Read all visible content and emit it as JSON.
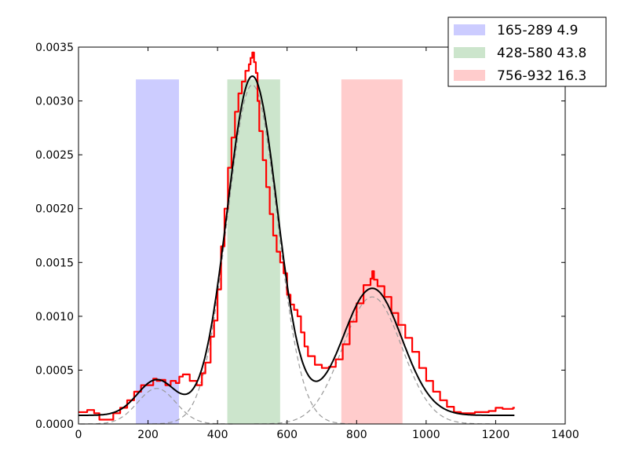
{
  "chart_data": {
    "type": "line",
    "title": "",
    "xlabel": "",
    "ylabel": "",
    "xlim": [
      0,
      1400
    ],
    "ylim": [
      0,
      0.0035
    ],
    "x_ticks": [
      0,
      200,
      400,
      600,
      800,
      1000,
      1200,
      1400
    ],
    "x_tick_labels": [
      "0",
      "200",
      "400",
      "600",
      "800",
      "1000",
      "1200",
      "1400"
    ],
    "y_ticks": [
      0,
      0.0005,
      0.001,
      0.0015,
      0.002,
      0.0025,
      0.003,
      0.0035
    ],
    "y_tick_labels": [
      "0.0000",
      "0.0005",
      "0.0010",
      "0.0015",
      "0.0020",
      "0.0025",
      "0.0030",
      "0.0035"
    ],
    "legend_position": "top-right (outside plot)",
    "bands": [
      {
        "label": "165-289 4.9",
        "x0": 165,
        "x1": 289,
        "y_top": 0.0032,
        "color": "#ccccff"
      },
      {
        "label": "428-580 43.8",
        "x0": 428,
        "x1": 580,
        "y_top": 0.0032,
        "color": "#cce5cc"
      },
      {
        "label": "756-932 16.3",
        "x0": 756,
        "x1": 932,
        "y_top": 0.0032,
        "color": "#ffcccc"
      }
    ],
    "components": [
      {
        "mean": 225,
        "sd": 55,
        "amp": 0.00033
      },
      {
        "mean": 500,
        "sd": 72,
        "amp": 0.00315
      },
      {
        "mean": 845,
        "sd": 85,
        "amp": 0.00118
      }
    ],
    "fit_baseline": 8e-05,
    "fit_range": [
      0,
      1255
    ],
    "series": [
      {
        "color": "#ff0000",
        "x": [
          0,
          25,
          45,
          60,
          80,
          100,
          120,
          140,
          160,
          180,
          200,
          215,
          225,
          235,
          250,
          265,
          280,
          290,
          300,
          320,
          340,
          355,
          365,
          380,
          390,
          400,
          410,
          420,
          430,
          440,
          450,
          460,
          470,
          480,
          490,
          495,
          500,
          505,
          510,
          515,
          520,
          530,
          540,
          550,
          560,
          570,
          580,
          590,
          600,
          610,
          620,
          630,
          640,
          650,
          660,
          680,
          700,
          720,
          740,
          760,
          780,
          800,
          820,
          840,
          845,
          850,
          860,
          880,
          900,
          920,
          940,
          960,
          980,
          1000,
          1020,
          1040,
          1060,
          1080,
          1100,
          1140,
          1180,
          1200,
          1220,
          1250
        ],
        "y": [
          0.00011,
          0.00013,
          0.0001,
          4e-05,
          4e-05,
          0.0001,
          0.00015,
          0.00022,
          0.0003,
          0.00036,
          0.00036,
          0.00042,
          0.0004,
          0.00041,
          0.00036,
          0.0004,
          0.00038,
          0.00044,
          0.00046,
          0.0004,
          0.00036,
          0.00047,
          0.00057,
          0.00081,
          0.00096,
          0.00125,
          0.00165,
          0.002,
          0.00238,
          0.00266,
          0.0029,
          0.00307,
          0.00318,
          0.00328,
          0.00334,
          0.0034,
          0.00345,
          0.00336,
          0.00326,
          0.003,
          0.00272,
          0.00245,
          0.0022,
          0.00195,
          0.00175,
          0.0016,
          0.0015,
          0.0014,
          0.0012,
          0.00111,
          0.00106,
          0.001,
          0.00085,
          0.00072,
          0.00063,
          0.00055,
          0.00052,
          0.00053,
          0.0006,
          0.00074,
          0.00095,
          0.00112,
          0.00129,
          0.00135,
          0.00142,
          0.00134,
          0.00128,
          0.00118,
          0.00103,
          0.00092,
          0.0008,
          0.00067,
          0.00052,
          0.0004,
          0.0003,
          0.00022,
          0.00016,
          0.00011,
          0.0001,
          0.00011,
          0.00012,
          0.00015,
          0.00014,
          0.00015
        ]
      }
    ]
  }
}
